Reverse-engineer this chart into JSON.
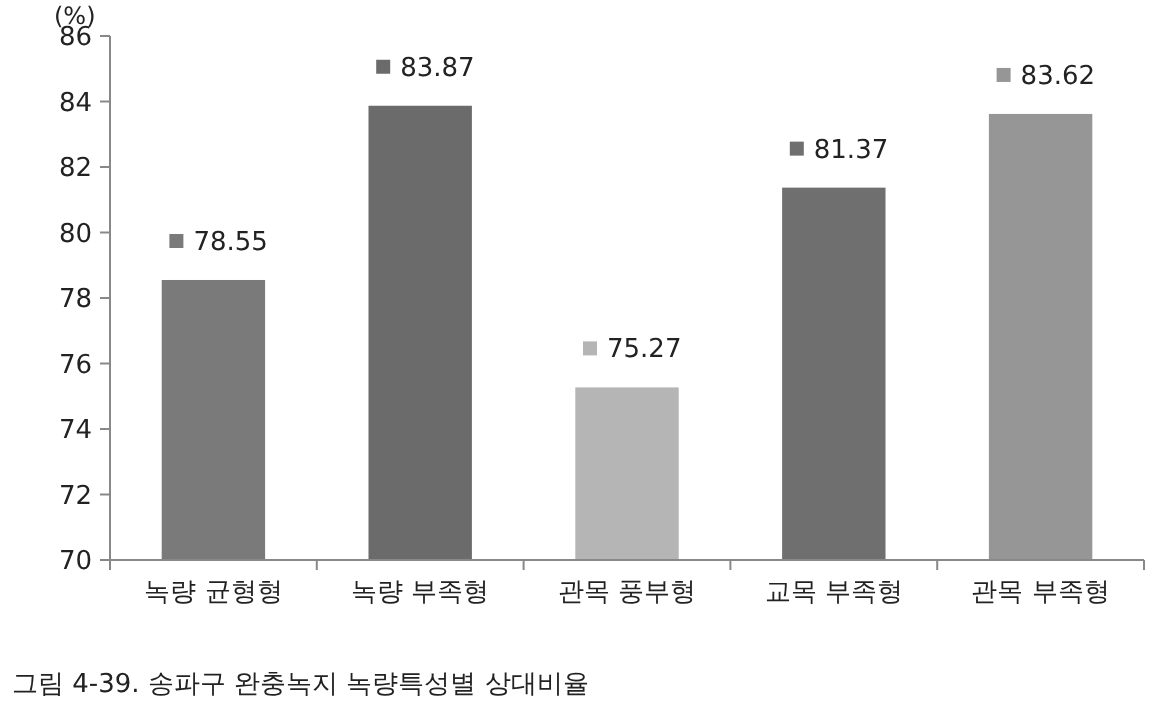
{
  "chart_data": {
    "type": "bar",
    "ylabel": "(%)",
    "categories": [
      "녹량 균형형",
      "녹량 부족형",
      "관목 풍부형",
      "교목 부족형",
      "관목 부족형"
    ],
    "values": [
      78.55,
      83.87,
      75.27,
      81.37,
      83.62
    ],
    "colors": [
      "#7a7a7a",
      "#6b6b6b",
      "#b5b5b5",
      "#6f6f6f",
      "#969696"
    ],
    "ylim": [
      70,
      86
    ],
    "yticks": [
      70,
      72,
      74,
      76,
      78,
      80,
      82,
      84,
      86
    ],
    "data_labels": true,
    "grid": false,
    "annotations": [
      "그림 4-39. 송파구 완충녹지 녹량특성별 상대비율"
    ]
  }
}
